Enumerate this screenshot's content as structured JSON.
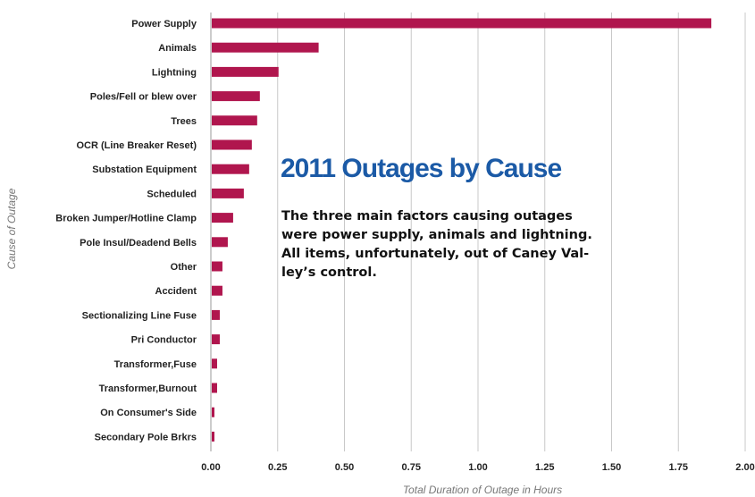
{
  "headline": "2011 Outages by Cause",
  "caption_lines": [
    "The three main factors causing outages",
    "were power supply, animals and lightning.",
    "All items, unfortunately, out of Caney Val-",
    "ley’s control."
  ],
  "colors": {
    "bar": "#b0164e",
    "grid": "#c8c8c8",
    "headline": "#1b5aa6"
  },
  "chart_data": {
    "type": "bar",
    "orientation": "horizontal",
    "xlabel": "Total Duration of Outage in Hours",
    "ylabel": "Cause of Outage",
    "xlim": [
      0,
      2
    ],
    "x_ticks": [
      "0.00",
      "0.25",
      "0.50",
      "0.75",
      "1.00",
      "1.25",
      "1.50",
      "1.75",
      "2.00"
    ],
    "grid": "vertical",
    "categories": [
      "Power Supply",
      "Animals",
      "Lightning",
      "Poles/Fell or blew over",
      "Trees",
      "OCR (Line Breaker Reset)",
      "Substation Equipment",
      "Scheduled",
      "Broken Jumper/Hotline Clamp",
      "Pole Insul/Deadend Bells",
      "Other",
      "Accident",
      "Sectionalizing Line Fuse",
      "Pri Conductor",
      "Transformer,Fuse",
      "Transformer,Burnout",
      "On Consumer's Side",
      "Secondary Pole Brkrs"
    ],
    "values": [
      1.87,
      0.4,
      0.25,
      0.18,
      0.17,
      0.15,
      0.14,
      0.12,
      0.08,
      0.06,
      0.04,
      0.04,
      0.03,
      0.03,
      0.02,
      0.02,
      0.01,
      0.01
    ]
  }
}
